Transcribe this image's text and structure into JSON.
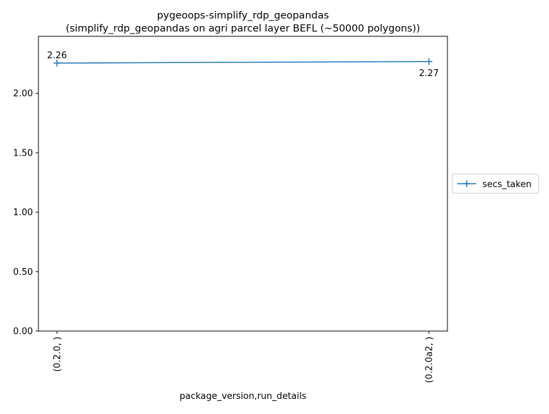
{
  "chart_data": {
    "type": "line",
    "title": "pygeoops-simplify_rdp_geopandas",
    "subtitle": "(simplify_rdp_geopandas on agri parcel layer BEFL (~50000 polygons))",
    "xlabel": "package_version,run_details",
    "ylabel": "",
    "categories": [
      "(0.2.0, )",
      "(0.2.0a2, )"
    ],
    "series": [
      {
        "name": "secs_taken",
        "values": [
          2.255,
          2.268
        ],
        "data_labels": [
          "2.26",
          "2.27"
        ],
        "color": "#1f77b4",
        "marker": "+"
      }
    ],
    "ylim": [
      0,
      2.48
    ],
    "yticks": [
      {
        "value": 0,
        "label": "0.00"
      },
      {
        "value": 0.5,
        "label": "0.50"
      },
      {
        "value": 1.0,
        "label": "1.00"
      },
      {
        "value": 1.5,
        "label": "1.50"
      },
      {
        "value": 2.0,
        "label": "2.00"
      }
    ],
    "grid": false,
    "legend": {
      "placement": "right-outside",
      "entries": [
        "secs_taken"
      ]
    }
  }
}
